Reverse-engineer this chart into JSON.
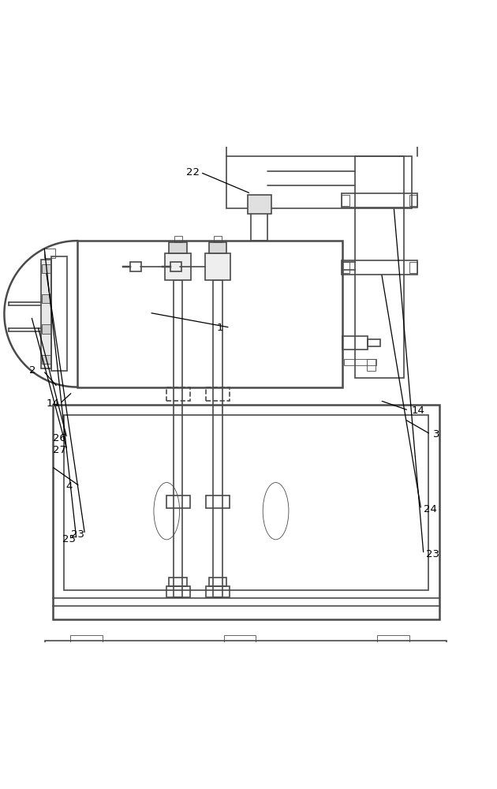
{
  "bg_color": "#ffffff",
  "line_color": "#4a4a4a",
  "line_width": 1.2,
  "thin_line": 0.6,
  "thick_line": 1.8
}
